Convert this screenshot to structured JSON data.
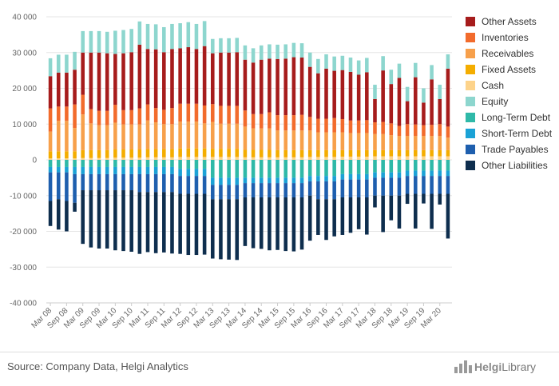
{
  "chart_data": {
    "type": "bar",
    "stacked": true,
    "title": "",
    "xlabel": "",
    "ylabel": "",
    "ylim": [
      -40000,
      40000
    ],
    "y_ticks": [
      40000,
      30000,
      20000,
      10000,
      0,
      -10000,
      -20000,
      -30000,
      -40000
    ],
    "y_tick_labels": [
      "40 000",
      "30 000",
      "20 000",
      "10 000",
      "0",
      "-10 000",
      "-20 000",
      "-30 000",
      "-40 000"
    ],
    "x_tick_labels": [
      "Mar 08",
      "Sep 08",
      "Mar 09",
      "Sep 09",
      "Mar 10",
      "Sep 10",
      "Mar 11",
      "Sep 11",
      "Mar 12",
      "Sep 12",
      "Mar 13",
      "Sep 13",
      "Mar 14",
      "Sep 14",
      "Mar 15",
      "Sep 15",
      "Mar 16",
      "Sep 16",
      "Mar 17",
      "Sep 17",
      "Mar 18",
      "Sep 18",
      "Mar 19",
      "Sep 19",
      "Mar 20"
    ],
    "categories": [
      "Mar 08",
      "Jun 08",
      "Sep 08",
      "Dec 08",
      "Mar 09",
      "Jun 09",
      "Sep 09",
      "Dec 09",
      "Mar 10",
      "Jun 10",
      "Sep 10",
      "Dec 10",
      "Mar 11",
      "Jun 11",
      "Sep 11",
      "Dec 11",
      "Mar 12",
      "Jun 12",
      "Sep 12",
      "Dec 12",
      "Mar 13",
      "Jun 13",
      "Sep 13",
      "Dec 13",
      "Mar 14",
      "Jun 14",
      "Sep 14",
      "Dec 14",
      "Mar 15",
      "Jun 15",
      "Sep 15",
      "Dec 15",
      "Mar 16",
      "Jun 16",
      "Sep 16",
      "Dec 16",
      "Mar 17",
      "Jun 17",
      "Sep 17",
      "Dec 17",
      "Mar 18",
      "Jun 18",
      "Sep 18",
      "Dec 18",
      "Mar 19",
      "Jun 19",
      "Sep 19",
      "Dec 19",
      "Mar 20",
      "Jun 20"
    ],
    "asset_series": [
      {
        "name": "Cash",
        "color": "#FDD38A",
        "values": [
          400,
          400,
          400,
          400,
          500,
          500,
          500,
          500,
          600,
          600,
          600,
          600,
          700,
          700,
          700,
          700,
          800,
          800,
          800,
          800,
          800,
          800,
          800,
          800,
          700,
          700,
          700,
          700,
          700,
          700,
          700,
          700,
          800,
          800,
          800,
          800,
          900,
          900,
          900,
          900,
          1000,
          1000,
          1000,
          1000,
          1000,
          1000,
          1000,
          1000,
          1000,
          1000
        ]
      },
      {
        "name": "Fixed Assets",
        "color": "#F4AD00",
        "values": [
          2000,
          2000,
          2000,
          2000,
          2200,
          2200,
          2200,
          2200,
          2300,
          2300,
          2300,
          2300,
          2300,
          2300,
          2300,
          2300,
          2400,
          2400,
          2400,
          2400,
          2300,
          2300,
          2300,
          2300,
          2100,
          2100,
          2100,
          2100,
          2000,
          2000,
          2000,
          2000,
          1900,
          1900,
          1900,
          1900,
          1800,
          1800,
          1800,
          1800,
          1700,
          1700,
          1700,
          1700,
          1700,
          1700,
          1700,
          1700,
          1700,
          1700
        ]
      },
      {
        "name": "Receivables",
        "color": "#F7A04B",
        "values": [
          5500,
          8500,
          8500,
          6500,
          10000,
          7500,
          7000,
          7000,
          7500,
          7000,
          7000,
          7000,
          8000,
          7500,
          7000,
          7000,
          7500,
          7500,
          7500,
          7000,
          7500,
          7000,
          7000,
          7000,
          6500,
          6000,
          6000,
          6000,
          5500,
          5500,
          5500,
          5500,
          5500,
          5000,
          5000,
          5000,
          5000,
          4800,
          4800,
          4800,
          4500,
          4500,
          4200,
          4000,
          4000,
          4000,
          4000,
          4000,
          4000,
          3500
        ]
      },
      {
        "name": "Inventories",
        "color": "#F26B2C",
        "values": [
          6500,
          4000,
          4000,
          6600,
          5500,
          4000,
          4000,
          4000,
          5000,
          4000,
          4000,
          4500,
          4500,
          4000,
          4000,
          4500,
          5000,
          5000,
          5000,
          5000,
          5000,
          5000,
          5000,
          5000,
          4500,
          4000,
          4000,
          4500,
          4300,
          4300,
          4300,
          4400,
          3800,
          3800,
          3800,
          4000,
          3700,
          3500,
          3500,
          3600,
          3300,
          3400,
          3300,
          2800,
          3300,
          3200,
          3000,
          3100,
          3300,
          3100
        ]
      },
      {
        "name": "Other Assets",
        "color": "#A61C1C",
        "values": [
          9000,
          9500,
          9500,
          9700,
          11800,
          15800,
          16300,
          16100,
          14200,
          15900,
          16200,
          17800,
          15500,
          16400,
          16100,
          16500,
          15500,
          15800,
          15300,
          16600,
          14200,
          14900,
          14900,
          15000,
          14200,
          14400,
          15200,
          15000,
          15700,
          15800,
          16200,
          16000,
          14000,
          12700,
          14000,
          13200,
          13700,
          13600,
          12800,
          13400,
          6500,
          14400,
          11000,
          13400,
          6400,
          13200,
          6300,
          12700,
          7000,
          16200
        ]
      },
      {
        "name": "Equity",
        "color": "#8DD6CE",
        "values": [
          5000,
          5000,
          5000,
          5000,
          6000,
          6000,
          6000,
          6000,
          6500,
          6500,
          6500,
          6500,
          7000,
          7000,
          7000,
          7000,
          7000,
          7000,
          7000,
          7000,
          4000,
          4000,
          4000,
          4000,
          4000,
          4000,
          4000,
          4000,
          4000,
          4000,
          4000,
          4000,
          4000,
          4000,
          4000,
          4000,
          4000,
          4000,
          4000,
          4000,
          4000,
          4000,
          4000,
          4000,
          4000,
          4000,
          4000,
          4000,
          4000,
          4000
        ]
      }
    ],
    "liability_series": [
      {
        "name": "Long-Term Debt",
        "color": "#2FB9A8",
        "values": [
          2000,
          2000,
          2000,
          2000,
          2000,
          2000,
          2000,
          2000,
          2000,
          2000,
          2000,
          2000,
          2000,
          2000,
          2000,
          2000,
          2500,
          2500,
          2500,
          2500,
          5000,
          5000,
          5000,
          5000,
          5000,
          5000,
          5000,
          5000,
          5000,
          5000,
          5000,
          5000,
          4500,
          4500,
          4500,
          4500,
          4000,
          4000,
          4000,
          4000,
          3500,
          3500,
          3500,
          3500,
          3000,
          3000,
          3000,
          3000,
          3000,
          3000
        ]
      },
      {
        "name": "Short-Term Debt",
        "color": "#1BA2D6",
        "values": [
          1500,
          1500,
          1500,
          2000,
          2000,
          2000,
          2000,
          2000,
          2000,
          2000,
          2000,
          2000,
          2000,
          2000,
          2000,
          2000,
          2000,
          2000,
          2000,
          2000,
          2000,
          2000,
          2000,
          2000,
          1500,
          1500,
          1500,
          1500,
          1500,
          1500,
          1500,
          1500,
          1500,
          1500,
          1500,
          1500,
          1500,
          1500,
          1500,
          1500,
          1500,
          1500,
          1500,
          1500,
          1500,
          1500,
          1500,
          1500,
          1500,
          1500
        ]
      },
      {
        "name": "Trade Payables",
        "color": "#1E5FAE",
        "values": [
          8000,
          7500,
          8000,
          8000,
          4500,
          4500,
          4500,
          4500,
          4500,
          4500,
          4500,
          5000,
          5000,
          5000,
          5000,
          5000,
          5000,
          5000,
          5000,
          5000,
          4000,
          4000,
          4000,
          4000,
          4000,
          4000,
          4000,
          4000,
          4000,
          4000,
          4000,
          4000,
          4000,
          5000,
          5000,
          5000,
          5000,
          5000,
          5000,
          5000,
          5000,
          5000,
          5000,
          5000,
          5000,
          5000,
          5000,
          5000,
          5000,
          5000
        ]
      },
      {
        "name": "Other Liabilities",
        "color": "#0E2E4E",
        "values": [
          7000,
          8500,
          8500,
          2500,
          15000,
          16000,
          16300,
          16300,
          16800,
          17000,
          17200,
          17300,
          16800,
          17100,
          16900,
          17200,
          16800,
          17100,
          17100,
          17000,
          16600,
          16800,
          16900,
          17000,
          13600,
          14200,
          14400,
          14800,
          14700,
          15000,
          15100,
          14600,
          12600,
          10000,
          11400,
          10400,
          10500,
          9900,
          8900,
          10400,
          3300,
          10200,
          6900,
          9200,
          2800,
          9700,
          2700,
          9800,
          3000,
          12500
        ]
      }
    ],
    "legend": [
      {
        "name": "Other Assets",
        "color": "#A61C1C"
      },
      {
        "name": "Inventories",
        "color": "#F26B2C"
      },
      {
        "name": "Receivables",
        "color": "#F7A04B"
      },
      {
        "name": "Fixed Assets",
        "color": "#F4AD00"
      },
      {
        "name": "Cash",
        "color": "#FDD38A"
      },
      {
        "name": "Equity",
        "color": "#8DD6CE"
      },
      {
        "name": "Long-Term Debt",
        "color": "#2FB9A8"
      },
      {
        "name": "Short-Term Debt",
        "color": "#1BA2D6"
      },
      {
        "name": "Trade Payables",
        "color": "#1E5FAE"
      },
      {
        "name": "Other Liabilities",
        "color": "#0E2E4E"
      }
    ],
    "legend_position": "right",
    "grid": true
  },
  "footer": {
    "source": "Source: Company Data, Helgi Analytics",
    "logo_bold": "Helgi",
    "logo_rest": "Library"
  }
}
